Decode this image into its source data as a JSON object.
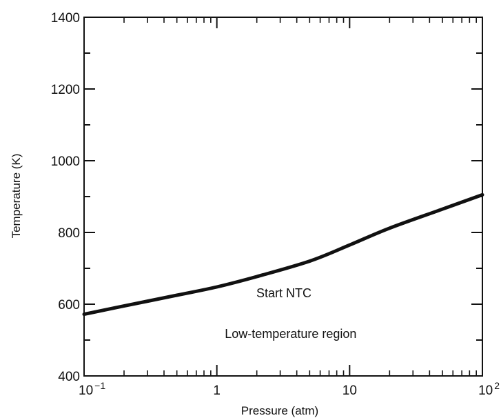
{
  "chart_data": {
    "type": "line",
    "xlabel": "Pressure (atm)",
    "ylabel": "Temperature (K)",
    "xscale": "log",
    "xlim": [
      0.1,
      100
    ],
    "ylim": [
      400,
      1400
    ],
    "grid": false,
    "x_ticks": [
      {
        "value": 0.1,
        "base": "10",
        "exp": "−1"
      },
      {
        "value": 1,
        "base": "1",
        "exp": ""
      },
      {
        "value": 10,
        "base": "10",
        "exp": ""
      },
      {
        "value": 100,
        "base": "10",
        "exp": "2"
      }
    ],
    "y_ticks": [
      "400",
      "600",
      "800",
      "1000",
      "1200",
      "1400"
    ],
    "series": [
      {
        "x": [
          0.1,
          0.2,
          0.5,
          1,
          2,
          5,
          10,
          20,
          50,
          100
        ],
        "y": [
          572,
          595,
          625,
          648,
          677,
          720,
          765,
          812,
          865,
          905
        ]
      }
    ],
    "annotations": [
      {
        "text": "Start NTC",
        "x": 3.2,
        "y": 619
      },
      {
        "text": "Low-temperature region",
        "x": 3.6,
        "y": 506
      }
    ],
    "colors": {
      "line": "#111111",
      "axis": "#111111"
    }
  }
}
